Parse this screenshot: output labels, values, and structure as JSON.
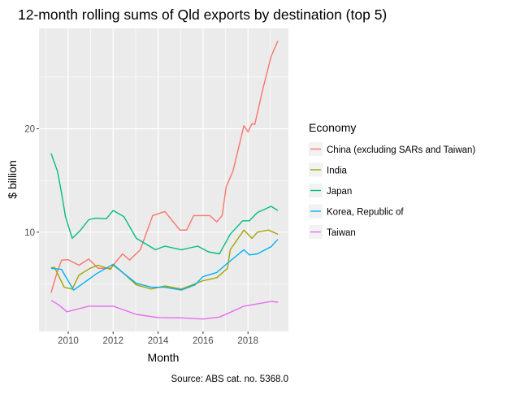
{
  "chart_data": {
    "type": "line",
    "title": "12-month rolling sums of Qld exports by destination (top 5)",
    "xlabel": "Month",
    "ylabel": "$ billion",
    "caption": "Source: ABS cat. no. 5368.0",
    "xlim": [
      2008.7,
      2019.8
    ],
    "ylim": [
      0.4,
      29.7
    ],
    "x_ticks": [
      2010,
      2012,
      2014,
      2016,
      2018
    ],
    "x_tick_labels": [
      "2010",
      "2012",
      "2014",
      "2016",
      "2018"
    ],
    "y_ticks": [
      10,
      20
    ],
    "y_tick_labels": [
      "10",
      "20"
    ],
    "y_minor_ticks": [
      5,
      15,
      25
    ],
    "grid": true,
    "legend": {
      "title": "Economy",
      "placement": "right"
    },
    "series": [
      {
        "name": "China (excluding SARs and Taiwan)",
        "color": "#F8766D",
        "points": [
          [
            2009.24,
            4.15
          ],
          [
            2009.45,
            5.7
          ],
          [
            2009.7,
            7.3
          ],
          [
            2010.0,
            7.34
          ],
          [
            2010.48,
            6.8
          ],
          [
            2010.91,
            7.4
          ],
          [
            2011.33,
            6.5
          ],
          [
            2011.88,
            6.5
          ],
          [
            2012.42,
            7.9
          ],
          [
            2012.73,
            7.3
          ],
          [
            2013.21,
            8.3
          ],
          [
            2013.76,
            11.6
          ],
          [
            2014.3,
            12.0
          ],
          [
            2014.97,
            10.2
          ],
          [
            2015.27,
            10.2
          ],
          [
            2015.58,
            11.6
          ],
          [
            2016.3,
            11.6
          ],
          [
            2016.61,
            11.0
          ],
          [
            2016.85,
            11.6
          ],
          [
            2017.03,
            14.4
          ],
          [
            2017.33,
            15.9
          ],
          [
            2017.82,
            20.3
          ],
          [
            2018.0,
            19.7
          ],
          [
            2018.18,
            20.5
          ],
          [
            2018.3,
            20.4
          ],
          [
            2018.67,
            23.9
          ],
          [
            2019.03,
            27.0
          ],
          [
            2019.33,
            28.5
          ]
        ]
      },
      {
        "name": "India",
        "color": "#A3A500",
        "points": [
          [
            2009.24,
            6.55
          ],
          [
            2009.39,
            6.6
          ],
          [
            2009.82,
            4.67
          ],
          [
            2010.18,
            4.5
          ],
          [
            2010.48,
            5.85
          ],
          [
            2010.97,
            6.5
          ],
          [
            2011.33,
            6.8
          ],
          [
            2011.88,
            6.4
          ],
          [
            2012.0,
            6.8
          ],
          [
            2012.48,
            6.0
          ],
          [
            2013.03,
            4.9
          ],
          [
            2013.7,
            4.5
          ],
          [
            2014.3,
            4.8
          ],
          [
            2015.03,
            4.5
          ],
          [
            2015.52,
            4.9
          ],
          [
            2016.0,
            5.3
          ],
          [
            2016.61,
            5.6
          ],
          [
            2017.09,
            6.5
          ],
          [
            2017.21,
            8.3
          ],
          [
            2017.82,
            10.2
          ],
          [
            2018.18,
            9.4
          ],
          [
            2018.42,
            10.0
          ],
          [
            2018.91,
            10.2
          ],
          [
            2019.33,
            9.8
          ]
        ]
      },
      {
        "name": "Japan",
        "color": "#00BF7D",
        "points": [
          [
            2009.24,
            17.6
          ],
          [
            2009.52,
            15.9
          ],
          [
            2009.7,
            13.8
          ],
          [
            2009.88,
            11.5
          ],
          [
            2010.18,
            9.4
          ],
          [
            2010.55,
            10.2
          ],
          [
            2010.91,
            11.2
          ],
          [
            2011.21,
            11.35
          ],
          [
            2011.7,
            11.3
          ],
          [
            2012.0,
            12.1
          ],
          [
            2012.48,
            11.5
          ],
          [
            2013.03,
            9.4
          ],
          [
            2013.88,
            8.3
          ],
          [
            2014.3,
            8.65
          ],
          [
            2015.03,
            8.3
          ],
          [
            2015.76,
            8.65
          ],
          [
            2016.24,
            8.1
          ],
          [
            2016.73,
            7.9
          ],
          [
            2017.21,
            9.8
          ],
          [
            2017.76,
            11.1
          ],
          [
            2018.06,
            11.1
          ],
          [
            2018.42,
            11.9
          ],
          [
            2019.03,
            12.5
          ],
          [
            2019.33,
            12.1
          ]
        ]
      },
      {
        "name": "Korea, Republic of",
        "color": "#00B0F6",
        "points": [
          [
            2009.24,
            6.5
          ],
          [
            2009.7,
            6.4
          ],
          [
            2010.24,
            4.4
          ],
          [
            2010.67,
            5.06
          ],
          [
            2011.27,
            6.0
          ],
          [
            2012.0,
            6.9
          ],
          [
            2012.48,
            6.0
          ],
          [
            2013.03,
            5.06
          ],
          [
            2013.7,
            4.67
          ],
          [
            2014.3,
            4.67
          ],
          [
            2015.03,
            4.4
          ],
          [
            2015.64,
            4.9
          ],
          [
            2016.0,
            5.7
          ],
          [
            2016.61,
            6.1
          ],
          [
            2017.09,
            7.0
          ],
          [
            2017.82,
            8.3
          ],
          [
            2018.06,
            7.8
          ],
          [
            2018.42,
            7.9
          ],
          [
            2019.03,
            8.6
          ],
          [
            2019.33,
            9.3
          ]
        ]
      },
      {
        "name": "Taiwan",
        "color": "#E76BF3",
        "points": [
          [
            2009.24,
            3.41
          ],
          [
            2009.58,
            2.97
          ],
          [
            2009.94,
            2.3
          ],
          [
            2010.48,
            2.6
          ],
          [
            2010.91,
            2.84
          ],
          [
            2012.0,
            2.84
          ],
          [
            2013.03,
            2.05
          ],
          [
            2014.0,
            1.74
          ],
          [
            2015.03,
            1.71
          ],
          [
            2016.0,
            1.6
          ],
          [
            2016.73,
            1.79
          ],
          [
            2017.27,
            2.3
          ],
          [
            2017.82,
            2.84
          ],
          [
            2019.03,
            3.3
          ],
          [
            2019.33,
            3.23
          ]
        ]
      }
    ]
  }
}
